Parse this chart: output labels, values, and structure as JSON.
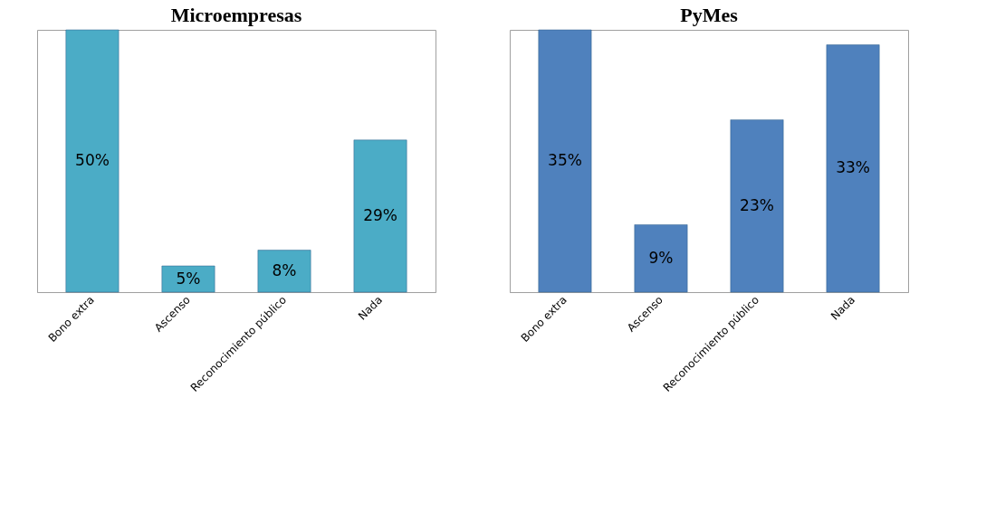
{
  "chart_data": [
    {
      "type": "bar",
      "title": "Microempresas",
      "categories": [
        "Bono extra",
        "Ascenso",
        "Reconocimiento público",
        "Nada"
      ],
      "values": [
        50,
        5,
        8,
        29
      ],
      "value_labels": [
        "50%",
        "5%",
        "8%",
        "29%"
      ],
      "color": "#4bacc6"
    },
    {
      "type": "bar",
      "title": "PyMes",
      "categories": [
        "Bono extra",
        "Ascenso",
        "Reconocimiento público",
        "Nada"
      ],
      "values": [
        35,
        9,
        23,
        33
      ],
      "value_labels": [
        "35%",
        "9%",
        "23%",
        "33%"
      ],
      "color": "#4f81bd"
    }
  ]
}
